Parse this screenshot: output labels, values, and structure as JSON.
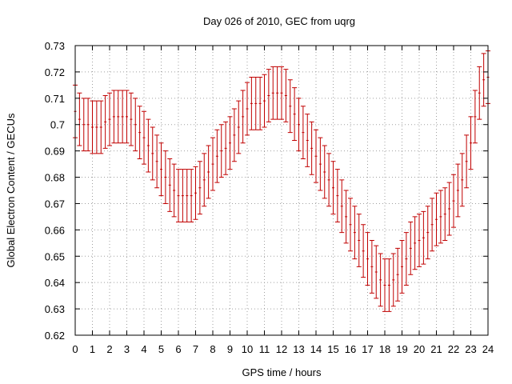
{
  "chart_data": {
    "type": "scatter",
    "title": "Day 026 of 2010, GEC from uqrg",
    "xlabel": "GPS time / hours",
    "ylabel": "Global Electron Content / GECUs",
    "xlim": [
      0,
      24
    ],
    "ylim": [
      0.62,
      0.73
    ],
    "grid": true,
    "series_color": "#c00000",
    "x_ticks": [
      "0",
      "1",
      "2",
      "3",
      "4",
      "5",
      "6",
      "7",
      "8",
      "9",
      "10",
      "11",
      "12",
      "13",
      "14",
      "15",
      "16",
      "17",
      "18",
      "19",
      "20",
      "21",
      "22",
      "23",
      "24"
    ],
    "y_ticks": [
      "0.62",
      "0.63",
      "0.64",
      "0.65",
      "0.66",
      "0.67",
      "0.68",
      "0.69",
      "0.7",
      "0.71",
      "0.72",
      "0.73"
    ],
    "error": 0.01,
    "points": [
      {
        "x": 0.0,
        "y": 0.705
      },
      {
        "x": 0.25,
        "y": 0.702
      },
      {
        "x": 0.5,
        "y": 0.7
      },
      {
        "x": 0.75,
        "y": 0.7
      },
      {
        "x": 1.0,
        "y": 0.699
      },
      {
        "x": 1.25,
        "y": 0.699
      },
      {
        "x": 1.5,
        "y": 0.699
      },
      {
        "x": 1.75,
        "y": 0.701
      },
      {
        "x": 2.0,
        "y": 0.702
      },
      {
        "x": 2.25,
        "y": 0.703
      },
      {
        "x": 2.5,
        "y": 0.703
      },
      {
        "x": 2.75,
        "y": 0.703
      },
      {
        "x": 3.0,
        "y": 0.703
      },
      {
        "x": 3.25,
        "y": 0.702
      },
      {
        "x": 3.5,
        "y": 0.7
      },
      {
        "x": 3.75,
        "y": 0.697
      },
      {
        "x": 4.0,
        "y": 0.695
      },
      {
        "x": 4.25,
        "y": 0.692
      },
      {
        "x": 4.5,
        "y": 0.689
      },
      {
        "x": 4.75,
        "y": 0.686
      },
      {
        "x": 5.0,
        "y": 0.683
      },
      {
        "x": 5.25,
        "y": 0.68
      },
      {
        "x": 5.5,
        "y": 0.677
      },
      {
        "x": 5.75,
        "y": 0.675
      },
      {
        "x": 6.0,
        "y": 0.673
      },
      {
        "x": 6.25,
        "y": 0.673
      },
      {
        "x": 6.5,
        "y": 0.673
      },
      {
        "x": 6.75,
        "y": 0.673
      },
      {
        "x": 7.0,
        "y": 0.674
      },
      {
        "x": 7.25,
        "y": 0.676
      },
      {
        "x": 7.5,
        "y": 0.679
      },
      {
        "x": 7.75,
        "y": 0.682
      },
      {
        "x": 8.0,
        "y": 0.685
      },
      {
        "x": 8.25,
        "y": 0.688
      },
      {
        "x": 8.5,
        "y": 0.69
      },
      {
        "x": 8.75,
        "y": 0.691
      },
      {
        "x": 9.0,
        "y": 0.693
      },
      {
        "x": 9.25,
        "y": 0.696
      },
      {
        "x": 9.5,
        "y": 0.699
      },
      {
        "x": 9.75,
        "y": 0.703
      },
      {
        "x": 10.0,
        "y": 0.706
      },
      {
        "x": 10.25,
        "y": 0.708
      },
      {
        "x": 10.5,
        "y": 0.708
      },
      {
        "x": 10.75,
        "y": 0.708
      },
      {
        "x": 11.0,
        "y": 0.709
      },
      {
        "x": 11.25,
        "y": 0.711
      },
      {
        "x": 11.5,
        "y": 0.712
      },
      {
        "x": 11.75,
        "y": 0.712
      },
      {
        "x": 12.0,
        "y": 0.712
      },
      {
        "x": 12.25,
        "y": 0.711
      },
      {
        "x": 12.5,
        "y": 0.707
      },
      {
        "x": 12.75,
        "y": 0.704
      },
      {
        "x": 13.0,
        "y": 0.7
      },
      {
        "x": 13.25,
        "y": 0.697
      },
      {
        "x": 13.5,
        "y": 0.694
      },
      {
        "x": 13.75,
        "y": 0.691
      },
      {
        "x": 14.0,
        "y": 0.688
      },
      {
        "x": 14.25,
        "y": 0.685
      },
      {
        "x": 14.5,
        "y": 0.682
      },
      {
        "x": 14.75,
        "y": 0.679
      },
      {
        "x": 15.0,
        "y": 0.676
      },
      {
        "x": 15.25,
        "y": 0.673
      },
      {
        "x": 15.5,
        "y": 0.669
      },
      {
        "x": 15.75,
        "y": 0.665
      },
      {
        "x": 16.0,
        "y": 0.662
      },
      {
        "x": 16.25,
        "y": 0.659
      },
      {
        "x": 16.5,
        "y": 0.656
      },
      {
        "x": 16.75,
        "y": 0.652
      },
      {
        "x": 17.0,
        "y": 0.649
      },
      {
        "x": 17.25,
        "y": 0.646
      },
      {
        "x": 17.5,
        "y": 0.644
      },
      {
        "x": 17.75,
        "y": 0.641
      },
      {
        "x": 18.0,
        "y": 0.639
      },
      {
        "x": 18.25,
        "y": 0.639
      },
      {
        "x": 18.5,
        "y": 0.641
      },
      {
        "x": 18.75,
        "y": 0.643
      },
      {
        "x": 19.0,
        "y": 0.646
      },
      {
        "x": 19.25,
        "y": 0.649
      },
      {
        "x": 19.5,
        "y": 0.653
      },
      {
        "x": 19.75,
        "y": 0.655
      },
      {
        "x": 20.0,
        "y": 0.656
      },
      {
        "x": 20.25,
        "y": 0.657
      },
      {
        "x": 20.5,
        "y": 0.659
      },
      {
        "x": 20.75,
        "y": 0.662
      },
      {
        "x": 21.0,
        "y": 0.664
      },
      {
        "x": 21.25,
        "y": 0.665
      },
      {
        "x": 21.5,
        "y": 0.666
      },
      {
        "x": 21.75,
        "y": 0.668
      },
      {
        "x": 22.0,
        "y": 0.671
      },
      {
        "x": 22.25,
        "y": 0.675
      },
      {
        "x": 22.5,
        "y": 0.679
      },
      {
        "x": 22.75,
        "y": 0.686
      },
      {
        "x": 23.0,
        "y": 0.693
      },
      {
        "x": 23.25,
        "y": 0.703
      },
      {
        "x": 23.5,
        "y": 0.712
      },
      {
        "x": 23.75,
        "y": 0.717
      },
      {
        "x": 24.0,
        "y": 0.718
      }
    ]
  }
}
